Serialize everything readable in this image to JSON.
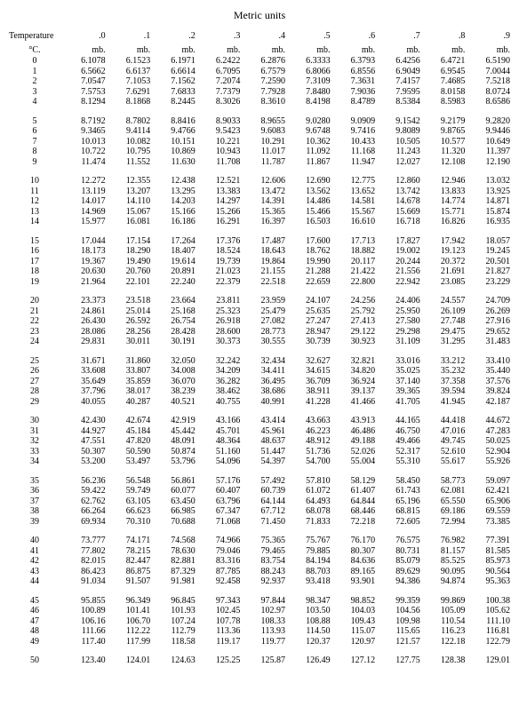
{
  "title": "Metric units",
  "row_header": "Temperature",
  "subhead": "°C.",
  "columns": [
    ".0",
    ".1",
    ".2",
    ".3",
    ".4",
    ".5",
    ".6",
    ".7",
    ".8",
    ".9"
  ],
  "units": [
    "mb.",
    "mb.",
    "mb.",
    "mb.",
    "mb.",
    "mb.",
    "mb.",
    "mb.",
    "mb.",
    "mb."
  ],
  "groups": [
    {
      "rows": [
        [
          "0",
          "6.1078",
          "6.1523",
          "6.1971",
          "6.2422",
          "6.2876",
          "6.3333",
          "6.3793",
          "6.4256",
          "6.4721",
          "6.5190"
        ],
        [
          "1",
          "6.5662",
          "6.6137",
          "6.6614",
          "6.7095",
          "6.7579",
          "6.8066",
          "6.8556",
          "6.9049",
          "6.9545",
          "7.0044"
        ],
        [
          "2",
          "7.0547",
          "7.1053",
          "7.1562",
          "7.2074",
          "7.2590",
          "7.3109",
          "7.3631",
          "7.4157",
          "7.4685",
          "7.5218"
        ],
        [
          "3",
          "7.5753",
          "7.6291",
          "7.6833",
          "7.7379",
          "7.7928",
          "7.8480",
          "7.9036",
          "7.9595",
          "8.0158",
          "8.0724"
        ],
        [
          "4",
          "8.1294",
          "8.1868",
          "8.2445",
          "8.3026",
          "8.3610",
          "8.4198",
          "8.4789",
          "8.5384",
          "8.5983",
          "8.6586"
        ]
      ]
    },
    {
      "rows": [
        [
          "5",
          "8.7192",
          "8.7802",
          "8.8416",
          "8.9033",
          "8.9655",
          "9.0280",
          "9.0909",
          "9.1542",
          "9.2179",
          "9.2820"
        ],
        [
          "6",
          "9.3465",
          "9.4114",
          "9.4766",
          "9.5423",
          "9.6083",
          "9.6748",
          "9.7416",
          "9.8089",
          "9.8765",
          "9.9446"
        ],
        [
          "7",
          "10.013",
          "10.082",
          "10.151",
          "10.221",
          "10.291",
          "10.362",
          "10.433",
          "10.505",
          "10.577",
          "10.649"
        ],
        [
          "8",
          "10.722",
          "10.795",
          "10.869",
          "10.943",
          "11.017",
          "11.092",
          "11.168",
          "11.243",
          "11.320",
          "11.397"
        ],
        [
          "9",
          "11.474",
          "11.552",
          "11.630",
          "11.708",
          "11.787",
          "11.867",
          "11.947",
          "12.027",
          "12.108",
          "12.190"
        ]
      ]
    },
    {
      "rows": [
        [
          "10",
          "12.272",
          "12.355",
          "12.438",
          "12.521",
          "12.606",
          "12.690",
          "12.775",
          "12.860",
          "12.946",
          "13.032"
        ],
        [
          "11",
          "13.119",
          "13.207",
          "13.295",
          "13.383",
          "13.472",
          "13.562",
          "13.652",
          "13.742",
          "13.833",
          "13.925"
        ],
        [
          "12",
          "14.017",
          "14.110",
          "14.203",
          "14.297",
          "14.391",
          "14.486",
          "14.581",
          "14.678",
          "14.774",
          "14.871"
        ],
        [
          "13",
          "14.969",
          "15.067",
          "15.166",
          "15.266",
          "15.365",
          "15.466",
          "15.567",
          "15.669",
          "15.771",
          "15.874"
        ],
        [
          "14",
          "15.977",
          "16.081",
          "16.186",
          "16.291",
          "16.397",
          "16.503",
          "16.610",
          "16.718",
          "16.826",
          "16.935"
        ]
      ]
    },
    {
      "rows": [
        [
          "15",
          "17.044",
          "17.154",
          "17.264",
          "17.376",
          "17.487",
          "17.600",
          "17.713",
          "17.827",
          "17.942",
          "18.057"
        ],
        [
          "16",
          "18.173",
          "18.290",
          "18.407",
          "18.524",
          "18.643",
          "18.762",
          "18.882",
          "19.002",
          "19.123",
          "19.245"
        ],
        [
          "17",
          "19.367",
          "19.490",
          "19.614",
          "19.739",
          "19.864",
          "19.990",
          "20.117",
          "20.244",
          "20.372",
          "20.501"
        ],
        [
          "18",
          "20.630",
          "20.760",
          "20.891",
          "21.023",
          "21.155",
          "21.288",
          "21.422",
          "21.556",
          "21.691",
          "21.827"
        ],
        [
          "19",
          "21.964",
          "22.101",
          "22.240",
          "22.379",
          "22.518",
          "22.659",
          "22.800",
          "22.942",
          "23.085",
          "23.229"
        ]
      ]
    },
    {
      "rows": [
        [
          "20",
          "23.373",
          "23.518",
          "23.664",
          "23.811",
          "23.959",
          "24.107",
          "24.256",
          "24.406",
          "24.557",
          "24.709"
        ],
        [
          "21",
          "24.861",
          "25.014",
          "25.168",
          "25.323",
          "25.479",
          "25.635",
          "25.792",
          "25.950",
          "26.109",
          "26.269"
        ],
        [
          "22",
          "26.430",
          "26.592",
          "26.754",
          "26.918",
          "27.082",
          "27.247",
          "27.413",
          "27.580",
          "27.748",
          "27.916"
        ],
        [
          "23",
          "28.086",
          "28.256",
          "28.428",
          "28.600",
          "28.773",
          "28.947",
          "29.122",
          "29.298",
          "29.475",
          "29.652"
        ],
        [
          "24",
          "29.831",
          "30.011",
          "30.191",
          "30.373",
          "30.555",
          "30.739",
          "30.923",
          "31.109",
          "31.295",
          "31.483"
        ]
      ]
    },
    {
      "rows": [
        [
          "25",
          "31.671",
          "31.860",
          "32.050",
          "32.242",
          "32.434",
          "32.627",
          "32.821",
          "33.016",
          "33.212",
          "33.410"
        ],
        [
          "26",
          "33.608",
          "33.807",
          "34.008",
          "34.209",
          "34.411",
          "34.615",
          "34.820",
          "35.025",
          "35.232",
          "35.440"
        ],
        [
          "27",
          "35.649",
          "35.859",
          "36.070",
          "36.282",
          "36.495",
          "36.709",
          "36.924",
          "37.140",
          "37.358",
          "37.576"
        ],
        [
          "28",
          "37.796",
          "38.017",
          "38.239",
          "38.462",
          "38.686",
          "38.911",
          "39.137",
          "39.365",
          "39.594",
          "39.824"
        ],
        [
          "29",
          "40.055",
          "40.287",
          "40.521",
          "40.755",
          "40.991",
          "41.228",
          "41.466",
          "41.705",
          "41.945",
          "42.187"
        ]
      ]
    },
    {
      "rows": [
        [
          "30",
          "42.430",
          "42.674",
          "42.919",
          "43.166",
          "43.414",
          "43.663",
          "43.913",
          "44.165",
          "44.418",
          "44.672"
        ],
        [
          "31",
          "44.927",
          "45.184",
          "45.442",
          "45.701",
          "45.961",
          "46.223",
          "46.486",
          "46.750",
          "47.016",
          "47.283"
        ],
        [
          "32",
          "47.551",
          "47.820",
          "48.091",
          "48.364",
          "48.637",
          "48.912",
          "49.188",
          "49.466",
          "49.745",
          "50.025"
        ],
        [
          "33",
          "50.307",
          "50.590",
          "50.874",
          "51.160",
          "51.447",
          "51.736",
          "52.026",
          "52.317",
          "52.610",
          "52.904"
        ],
        [
          "34",
          "53.200",
          "53.497",
          "53.796",
          "54.096",
          "54.397",
          "54.700",
          "55.004",
          "55.310",
          "55.617",
          "55.926"
        ]
      ]
    },
    {
      "rows": [
        [
          "35",
          "56.236",
          "56.548",
          "56.861",
          "57.176",
          "57.492",
          "57.810",
          "58.129",
          "58.450",
          "58.773",
          "59.097"
        ],
        [
          "36",
          "59.422",
          "59.749",
          "60.077",
          "60.407",
          "60.739",
          "61.072",
          "61.407",
          "61.743",
          "62.081",
          "62.421"
        ],
        [
          "37",
          "62.762",
          "63.105",
          "63.450",
          "63.796",
          "64.144",
          "64.493",
          "64.844",
          "65.196",
          "65.550",
          "65.906"
        ],
        [
          "38",
          "66.264",
          "66.623",
          "66.985",
          "67.347",
          "67.712",
          "68.078",
          "68.446",
          "68.815",
          "69.186",
          "69.559"
        ],
        [
          "39",
          "69.934",
          "70.310",
          "70.688",
          "71.068",
          "71.450",
          "71.833",
          "72.218",
          "72.605",
          "72.994",
          "73.385"
        ]
      ]
    },
    {
      "rows": [
        [
          "40",
          "73.777",
          "74.171",
          "74.568",
          "74.966",
          "75.365",
          "75.767",
          "76.170",
          "76.575",
          "76.982",
          "77.391"
        ],
        [
          "41",
          "77.802",
          "78.215",
          "78.630",
          "79.046",
          "79.465",
          "79.885",
          "80.307",
          "80.731",
          "81.157",
          "81.585"
        ],
        [
          "42",
          "82.015",
          "82.447",
          "82.881",
          "83.316",
          "83.754",
          "84.194",
          "84.636",
          "85.079",
          "85.525",
          "85.973"
        ],
        [
          "43",
          "86.423",
          "86.875",
          "87.329",
          "87.785",
          "88.243",
          "88.703",
          "89.165",
          "89.629",
          "90.095",
          "90.564"
        ],
        [
          "44",
          "91.034",
          "91.507",
          "91.981",
          "92.458",
          "92.937",
          "93.418",
          "93.901",
          "94.386",
          "94.874",
          "95.363"
        ]
      ]
    },
    {
      "rows": [
        [
          "45",
          "95.855",
          "96.349",
          "96.845",
          "97.343",
          "97.844",
          "98.347",
          "98.852",
          "99.359",
          "99.869",
          "100.38"
        ],
        [
          "46",
          "100.89",
          "101.41",
          "101.93",
          "102.45",
          "102.97",
          "103.50",
          "104.03",
          "104.56",
          "105.09",
          "105.62"
        ],
        [
          "47",
          "106.16",
          "106.70",
          "107.24",
          "107.78",
          "108.33",
          "108.88",
          "109.43",
          "109.98",
          "110.54",
          "111.10"
        ],
        [
          "48",
          "111.66",
          "112.22",
          "112.79",
          "113.36",
          "113.93",
          "114.50",
          "115.07",
          "115.65",
          "116.23",
          "116.81"
        ],
        [
          "49",
          "117.40",
          "117.99",
          "118.58",
          "119.17",
          "119.77",
          "120.37",
          "120.97",
          "121.57",
          "122.18",
          "122.79"
        ]
      ]
    },
    {
      "rows": [
        [
          "50",
          "123.40",
          "124.01",
          "124.63",
          "125.25",
          "125.87",
          "126.49",
          "127.12",
          "127.75",
          "128.38",
          "129.01"
        ]
      ]
    }
  ]
}
